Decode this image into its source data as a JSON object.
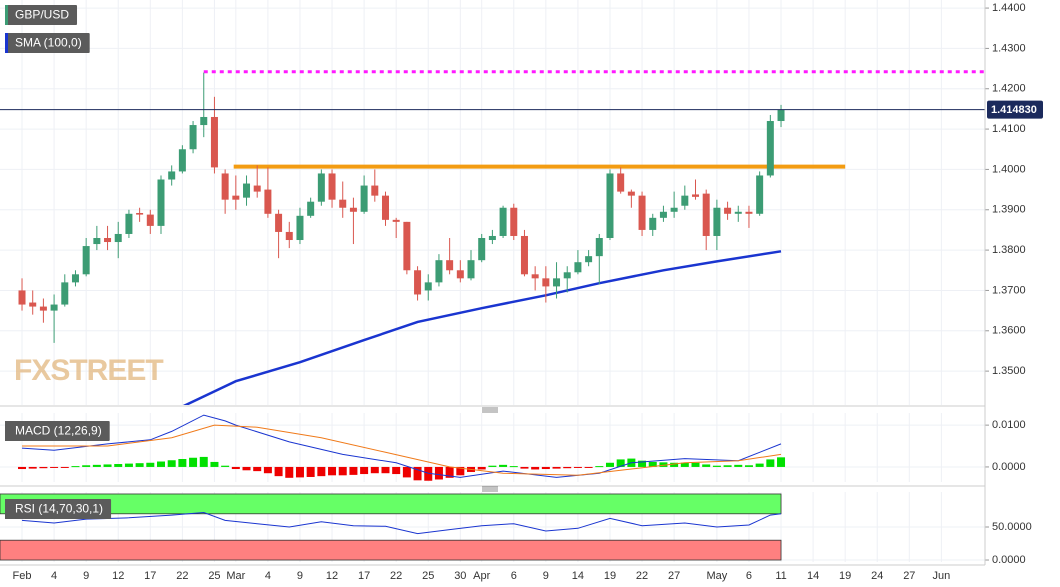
{
  "chart_data": [
    {
      "type": "candlestick",
      "title": "GBP/USD",
      "title_color": "#3c9c74",
      "x": [
        0,
        1,
        2,
        3,
        4,
        5,
        6,
        7,
        8,
        9,
        10,
        11,
        12,
        13,
        14,
        15,
        16,
        17,
        18,
        19,
        20,
        21,
        22,
        23,
        24,
        25,
        26,
        27,
        28,
        29,
        30,
        31,
        32,
        33,
        34,
        35,
        36,
        37,
        38,
        39,
        40,
        41,
        42,
        43,
        44,
        45,
        46,
        47,
        48,
        49,
        50,
        51,
        52,
        53,
        54,
        55,
        56,
        57,
        58,
        59,
        60,
        61,
        62,
        63,
        64,
        65,
        66,
        67,
        68,
        69,
        70,
        71
      ],
      "open": [
        1.37,
        1.367,
        1.366,
        1.365,
        1.3665,
        1.372,
        1.374,
        1.3815,
        1.383,
        1.382,
        1.384,
        1.3892,
        1.3888,
        1.386,
        1.3975,
        1.3995,
        1.405,
        1.411,
        1.413,
        1.399,
        1.3935,
        1.393,
        1.396,
        1.395,
        1.389,
        1.3845,
        1.3825,
        1.3885,
        1.392,
        1.399,
        1.3925,
        1.3905,
        1.3895,
        1.396,
        1.3935,
        1.3875,
        1.387,
        1.375,
        1.37,
        1.372,
        1.3775,
        1.375,
        1.373,
        1.3775,
        1.3825,
        1.3835,
        1.3905,
        1.3835,
        1.374,
        1.373,
        1.371,
        1.373,
        1.3745,
        1.377,
        1.3785,
        1.383,
        1.399,
        1.3945,
        1.3935,
        1.385,
        1.388,
        1.3895,
        1.391,
        1.3938,
        1.394,
        1.3835,
        1.3905,
        1.389,
        1.3895,
        1.389,
        1.3985,
        1.412
      ],
      "high": [
        1.373,
        1.37,
        1.368,
        1.369,
        1.374,
        1.375,
        1.383,
        1.386,
        1.386,
        1.387,
        1.39,
        1.3905,
        1.39,
        1.3985,
        1.401,
        1.406,
        1.412,
        1.424,
        1.418,
        1.4,
        1.3985,
        1.3985,
        1.401,
        1.4005,
        1.39,
        1.387,
        1.3905,
        1.393,
        1.4,
        1.4,
        1.397,
        1.393,
        1.3985,
        1.4,
        1.3945,
        1.388,
        1.387,
        1.376,
        1.374,
        1.379,
        1.383,
        1.3775,
        1.38,
        1.384,
        1.385,
        1.391,
        1.3915,
        1.385,
        1.376,
        1.376,
        1.377,
        1.376,
        1.38,
        1.38,
        1.384,
        1.4,
        1.4005,
        1.395,
        1.3945,
        1.389,
        1.391,
        1.3945,
        1.396,
        1.3975,
        1.395,
        1.3925,
        1.392,
        1.391,
        1.391,
        1.3995,
        1.4135,
        1.416
      ],
      "low": [
        1.365,
        1.364,
        1.362,
        1.357,
        1.366,
        1.371,
        1.3735,
        1.38,
        1.38,
        1.378,
        1.383,
        1.387,
        1.384,
        1.384,
        1.396,
        1.399,
        1.404,
        1.408,
        1.399,
        1.389,
        1.39,
        1.391,
        1.393,
        1.388,
        1.378,
        1.3805,
        1.3815,
        1.388,
        1.391,
        1.3905,
        1.388,
        1.3815,
        1.389,
        1.392,
        1.386,
        1.383,
        1.374,
        1.3675,
        1.3675,
        1.371,
        1.374,
        1.372,
        1.3725,
        1.377,
        1.3815,
        1.383,
        1.3825,
        1.3735,
        1.37,
        1.367,
        1.368,
        1.3695,
        1.374,
        1.376,
        1.3715,
        1.3825,
        1.394,
        1.3905,
        1.3835,
        1.3835,
        1.387,
        1.388,
        1.39,
        1.3925,
        1.38,
        1.38,
        1.3875,
        1.387,
        1.3855,
        1.3885,
        1.398,
        1.4105
      ],
      "close": [
        1.3665,
        1.366,
        1.365,
        1.3665,
        1.372,
        1.374,
        1.381,
        1.383,
        1.382,
        1.384,
        1.389,
        1.3888,
        1.386,
        1.3975,
        1.3995,
        1.405,
        1.411,
        1.413,
        1.4005,
        1.3925,
        1.3925,
        1.3965,
        1.3945,
        1.389,
        1.3845,
        1.3825,
        1.3885,
        1.392,
        1.399,
        1.3925,
        1.3905,
        1.3895,
        1.396,
        1.3935,
        1.3875,
        1.387,
        1.375,
        1.369,
        1.372,
        1.3775,
        1.375,
        1.373,
        1.3775,
        1.383,
        1.3835,
        1.3905,
        1.3835,
        1.374,
        1.373,
        1.371,
        1.373,
        1.3745,
        1.377,
        1.3785,
        1.383,
        1.399,
        1.3945,
        1.3935,
        1.385,
        1.388,
        1.3895,
        1.3905,
        1.3935,
        1.3932,
        1.3835,
        1.3905,
        1.389,
        1.3895,
        1.389,
        1.3985,
        1.412,
        1.4148
      ],
      "up_color": "#3c9c74",
      "down_color": "#d9574f",
      "xlim": [
        -2.06,
        90.08
      ],
      "ylim": [
        1.3416,
        1.442
      ],
      "yticks": [
        {
          "value": 1.44,
          "label": "1.4400"
        },
        {
          "value": 1.43,
          "label": "1.4300"
        },
        {
          "value": 1.42,
          "label": "1.4200"
        },
        {
          "value": 1.41,
          "label": "1.4100"
        },
        {
          "value": 1.4,
          "label": "1.4000"
        },
        {
          "value": 1.39,
          "label": "1.3900"
        },
        {
          "value": 1.38,
          "label": "1.3800"
        },
        {
          "value": 1.37,
          "label": "1.3700"
        },
        {
          "value": 1.36,
          "label": "1.3600"
        },
        {
          "value": 1.35,
          "label": "1.3500"
        }
      ],
      "grid": true,
      "last_price": {
        "value": 1.41483,
        "label": "1.414830"
      },
      "overlays": [
        {
          "name": "SMA (100,0)",
          "color": "#1a35d0",
          "x": [
            15,
            20,
            26,
            32,
            37,
            43,
            49,
            54,
            60,
            65,
            71
          ],
          "values": [
            1.3412,
            1.3475,
            1.3522,
            1.3577,
            1.3622,
            1.3656,
            1.3688,
            1.3718,
            1.375,
            1.3772,
            1.3797
          ]
        }
      ],
      "levels": [
        {
          "value": 1.4242,
          "from": 17,
          "to": 90.08,
          "color": "#ff1aff",
          "style": "dotted"
        },
        {
          "value": 1.4007,
          "from": 19.8,
          "to": 77,
          "color": "#f39c12",
          "style": "solid"
        }
      ],
      "watermark": "FXSTREET"
    },
    {
      "type": "macd",
      "title": "MACD (12,26,9)",
      "x": [
        0,
        1,
        2,
        3,
        4,
        5,
        6,
        7,
        8,
        9,
        10,
        11,
        12,
        13,
        14,
        15,
        16,
        17,
        18,
        19,
        20,
        21,
        22,
        23,
        24,
        25,
        26,
        27,
        28,
        29,
        30,
        31,
        32,
        33,
        34,
        35,
        36,
        37,
        38,
        39,
        40,
        41,
        42,
        43,
        44,
        45,
        46,
        47,
        48,
        49,
        50,
        51,
        52,
        53,
        54,
        55,
        56,
        57,
        58,
        59,
        60,
        61,
        62,
        63,
        64,
        65,
        66,
        67,
        68,
        69,
        70,
        71
      ],
      "histogram": [
        -0.0005,
        -0.0004,
        -0.0003,
        -0.0002,
        -0.0001,
        0.0002,
        0.0004,
        0.0005,
        0.0006,
        0.0007,
        0.0008,
        0.0009,
        0.001,
        0.0013,
        0.0016,
        0.0019,
        0.0022,
        0.0024,
        0.0012,
        0.0003,
        -0.0005,
        -0.0008,
        -0.001,
        -0.0015,
        -0.0022,
        -0.0026,
        -0.0025,
        -0.0024,
        -0.0022,
        -0.002,
        -0.002,
        -0.0019,
        -0.0017,
        -0.0015,
        -0.0015,
        -0.0017,
        -0.0025,
        -0.0032,
        -0.0033,
        -0.003,
        -0.0026,
        -0.002,
        -0.0012,
        -0.0006,
        0.0003,
        0.0005,
        0.0002,
        -0.0004,
        -0.0006,
        -0.0005,
        -0.0004,
        -0.0003,
        -0.0002,
        -0.0001,
        0.0002,
        0.001,
        0.0018,
        0.002,
        0.0015,
        0.0012,
        0.0011,
        0.001,
        0.001,
        0.001,
        0.0006,
        0.0003,
        0.0004,
        0.0005,
        0.0004,
        0.0008,
        0.0018,
        0.0023
      ],
      "positive_color": "#00e000",
      "negative_color": "#ee0000",
      "series": [
        {
          "color": "#1a35d0",
          "x": [
            0,
            3,
            8,
            12,
            14,
            17,
            19,
            20,
            25,
            30,
            35,
            38,
            41,
            45,
            50,
            54,
            57,
            62,
            67,
            71
          ],
          "values": [
            0.0045,
            0.004,
            0.0055,
            0.0065,
            0.0085,
            0.0124,
            0.011,
            0.01,
            0.006,
            0.003,
            0.001,
            -0.0015,
            -0.0025,
            -0.001,
            -0.0025,
            -0.0015,
            0.001,
            0.002,
            0.0015,
            0.0055
          ]
        },
        {
          "color": "#f07a1a",
          "x": [
            0,
            8,
            14,
            18,
            22,
            28,
            34,
            40,
            45,
            52,
            57,
            62,
            67,
            71
          ],
          "values": [
            0.005,
            0.005,
            0.007,
            0.01,
            0.0095,
            0.007,
            0.0035,
            0,
            -0.0015,
            -0.002,
            -0.0005,
            0.001,
            0.0015,
            0.003
          ]
        }
      ],
      "xlim": [
        -2.06,
        90.08
      ],
      "ylim": [
        -0.0036,
        0.0129
      ],
      "yticks": [
        {
          "value": 0.01,
          "label": "0.0100"
        },
        {
          "value": 0,
          "label": "0.0000"
        }
      ],
      "grid": true
    },
    {
      "type": "rsi",
      "title": "RSI (14,70,30,1)",
      "bands": [
        {
          "from": 70,
          "to": 100,
          "until": 71,
          "color": "#66ff66"
        },
        {
          "from": 0,
          "to": 30,
          "until": 71,
          "color": "#ff8080"
        }
      ],
      "series": [
        {
          "color": "#1a35d0",
          "x": [
            0,
            3,
            6,
            10,
            14,
            17,
            19,
            22,
            25,
            28,
            31,
            34,
            37,
            40,
            43,
            46,
            49,
            52,
            55,
            58,
            62,
            65,
            68,
            70,
            71
          ],
          "values": [
            60,
            56,
            62,
            64,
            68,
            72,
            60,
            55,
            50,
            58,
            52,
            51,
            40,
            46,
            52,
            55,
            44,
            48,
            63,
            52,
            56,
            50,
            53,
            68,
            70
          ]
        }
      ],
      "xlim": [
        -2.06,
        90.08
      ],
      "ylim": [
        -3,
        103
      ],
      "yticks": [
        {
          "value": 50,
          "label": "50.0000"
        },
        {
          "value": 0,
          "label": "0.0000"
        }
      ],
      "grid": true,
      "xticks": [
        {
          "value": 0,
          "label": "Feb"
        },
        {
          "value": 3,
          "label": "4"
        },
        {
          "value": 6,
          "label": "9"
        },
        {
          "value": 9,
          "label": "12"
        },
        {
          "value": 12,
          "label": "17"
        },
        {
          "value": 15,
          "label": "22"
        },
        {
          "value": 18,
          "label": "25"
        },
        {
          "value": 20,
          "label": "Mar"
        },
        {
          "value": 23,
          "label": "4"
        },
        {
          "value": 26,
          "label": "9"
        },
        {
          "value": 29,
          "label": "12"
        },
        {
          "value": 32,
          "label": "17"
        },
        {
          "value": 35,
          "label": "22"
        },
        {
          "value": 38,
          "label": "25"
        },
        {
          "value": 41,
          "label": "30"
        },
        {
          "value": 43,
          "label": "Apr"
        },
        {
          "value": 46,
          "label": "6"
        },
        {
          "value": 49,
          "label": "9"
        },
        {
          "value": 52,
          "label": "14"
        },
        {
          "value": 55,
          "label": "19"
        },
        {
          "value": 58,
          "label": "22"
        },
        {
          "value": 61,
          "label": "27"
        },
        {
          "value": 65,
          "label": "May"
        },
        {
          "value": 68,
          "label": "6"
        },
        {
          "value": 71,
          "label": "11"
        },
        {
          "value": 74,
          "label": "14"
        },
        {
          "value": 77,
          "label": "19"
        },
        {
          "value": 80,
          "label": "24"
        },
        {
          "value": 83,
          "label": "27"
        },
        {
          "value": 86,
          "label": "Jun"
        }
      ]
    }
  ]
}
